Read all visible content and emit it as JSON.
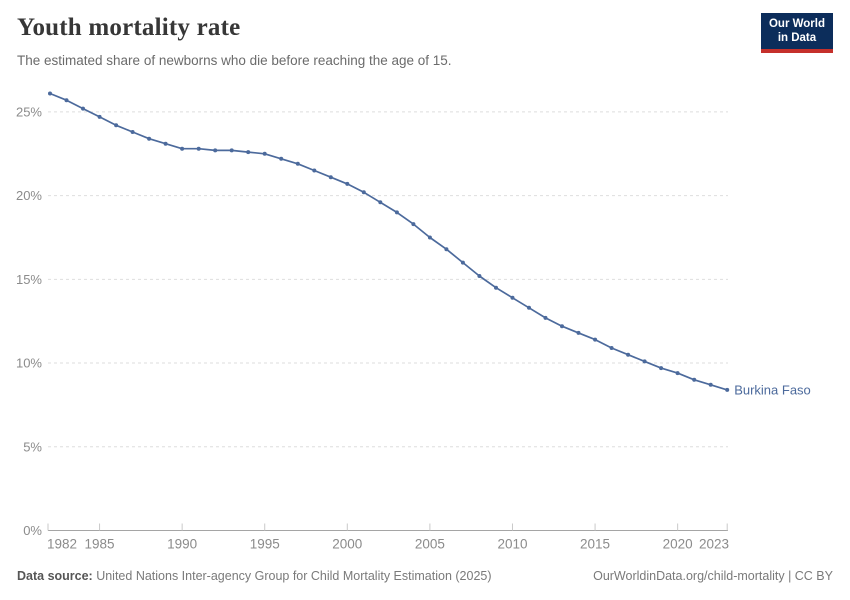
{
  "header": {
    "title": "Youth mortality rate",
    "subtitle": "The estimated share of newborns who die before reaching the age of 15.",
    "logo": {
      "line1": "Our World",
      "line2": "in Data",
      "bg_color": "#0C2D5B",
      "accent_color": "#C5302B"
    }
  },
  "chart_data": {
    "type": "line",
    "title": "Youth mortality rate",
    "entity": "Burkina Faso",
    "x": [
      1982,
      1983,
      1984,
      1985,
      1986,
      1987,
      1988,
      1989,
      1990,
      1991,
      1992,
      1993,
      1994,
      1995,
      1996,
      1997,
      1998,
      1999,
      2000,
      2001,
      2002,
      2003,
      2004,
      2005,
      2006,
      2007,
      2008,
      2009,
      2010,
      2011,
      2012,
      2013,
      2014,
      2015,
      2016,
      2017,
      2018,
      2019,
      2020,
      2021,
      2022,
      2023
    ],
    "values": [
      26.1,
      25.7,
      25.2,
      24.7,
      24.2,
      23.8,
      23.4,
      23.1,
      22.8,
      22.8,
      22.7,
      22.7,
      22.6,
      22.5,
      22.2,
      21.9,
      21.5,
      21.1,
      20.7,
      20.2,
      19.6,
      19.0,
      18.3,
      17.5,
      16.8,
      16.0,
      15.2,
      14.5,
      13.9,
      13.3,
      12.7,
      12.2,
      11.8,
      11.4,
      10.9,
      10.5,
      10.1,
      9.7,
      9.4,
      9.0,
      8.7,
      8.4
    ],
    "x_ticks": [
      1982,
      1985,
      1990,
      1995,
      2000,
      2005,
      2010,
      2015,
      2020,
      2023
    ],
    "y_ticks": [
      0,
      5,
      10,
      15,
      20,
      25
    ],
    "y_tick_suffix": "%",
    "ylim": [
      0,
      26.5
    ],
    "xlim": [
      1982,
      2023
    ],
    "grid": true,
    "legend_position": "end-of-line-label",
    "line_color": "#4C6A9C",
    "grid_color": "#dedede",
    "axis_color": "#a5a5a5",
    "tick_label_color": "#8b8b8b"
  },
  "footer": {
    "source_label": "Data source:",
    "source_text": " United Nations Inter-agency Group for Child Mortality Estimation (2025)",
    "link_text": "OurWorldinData.org/child-mortality | CC BY"
  }
}
